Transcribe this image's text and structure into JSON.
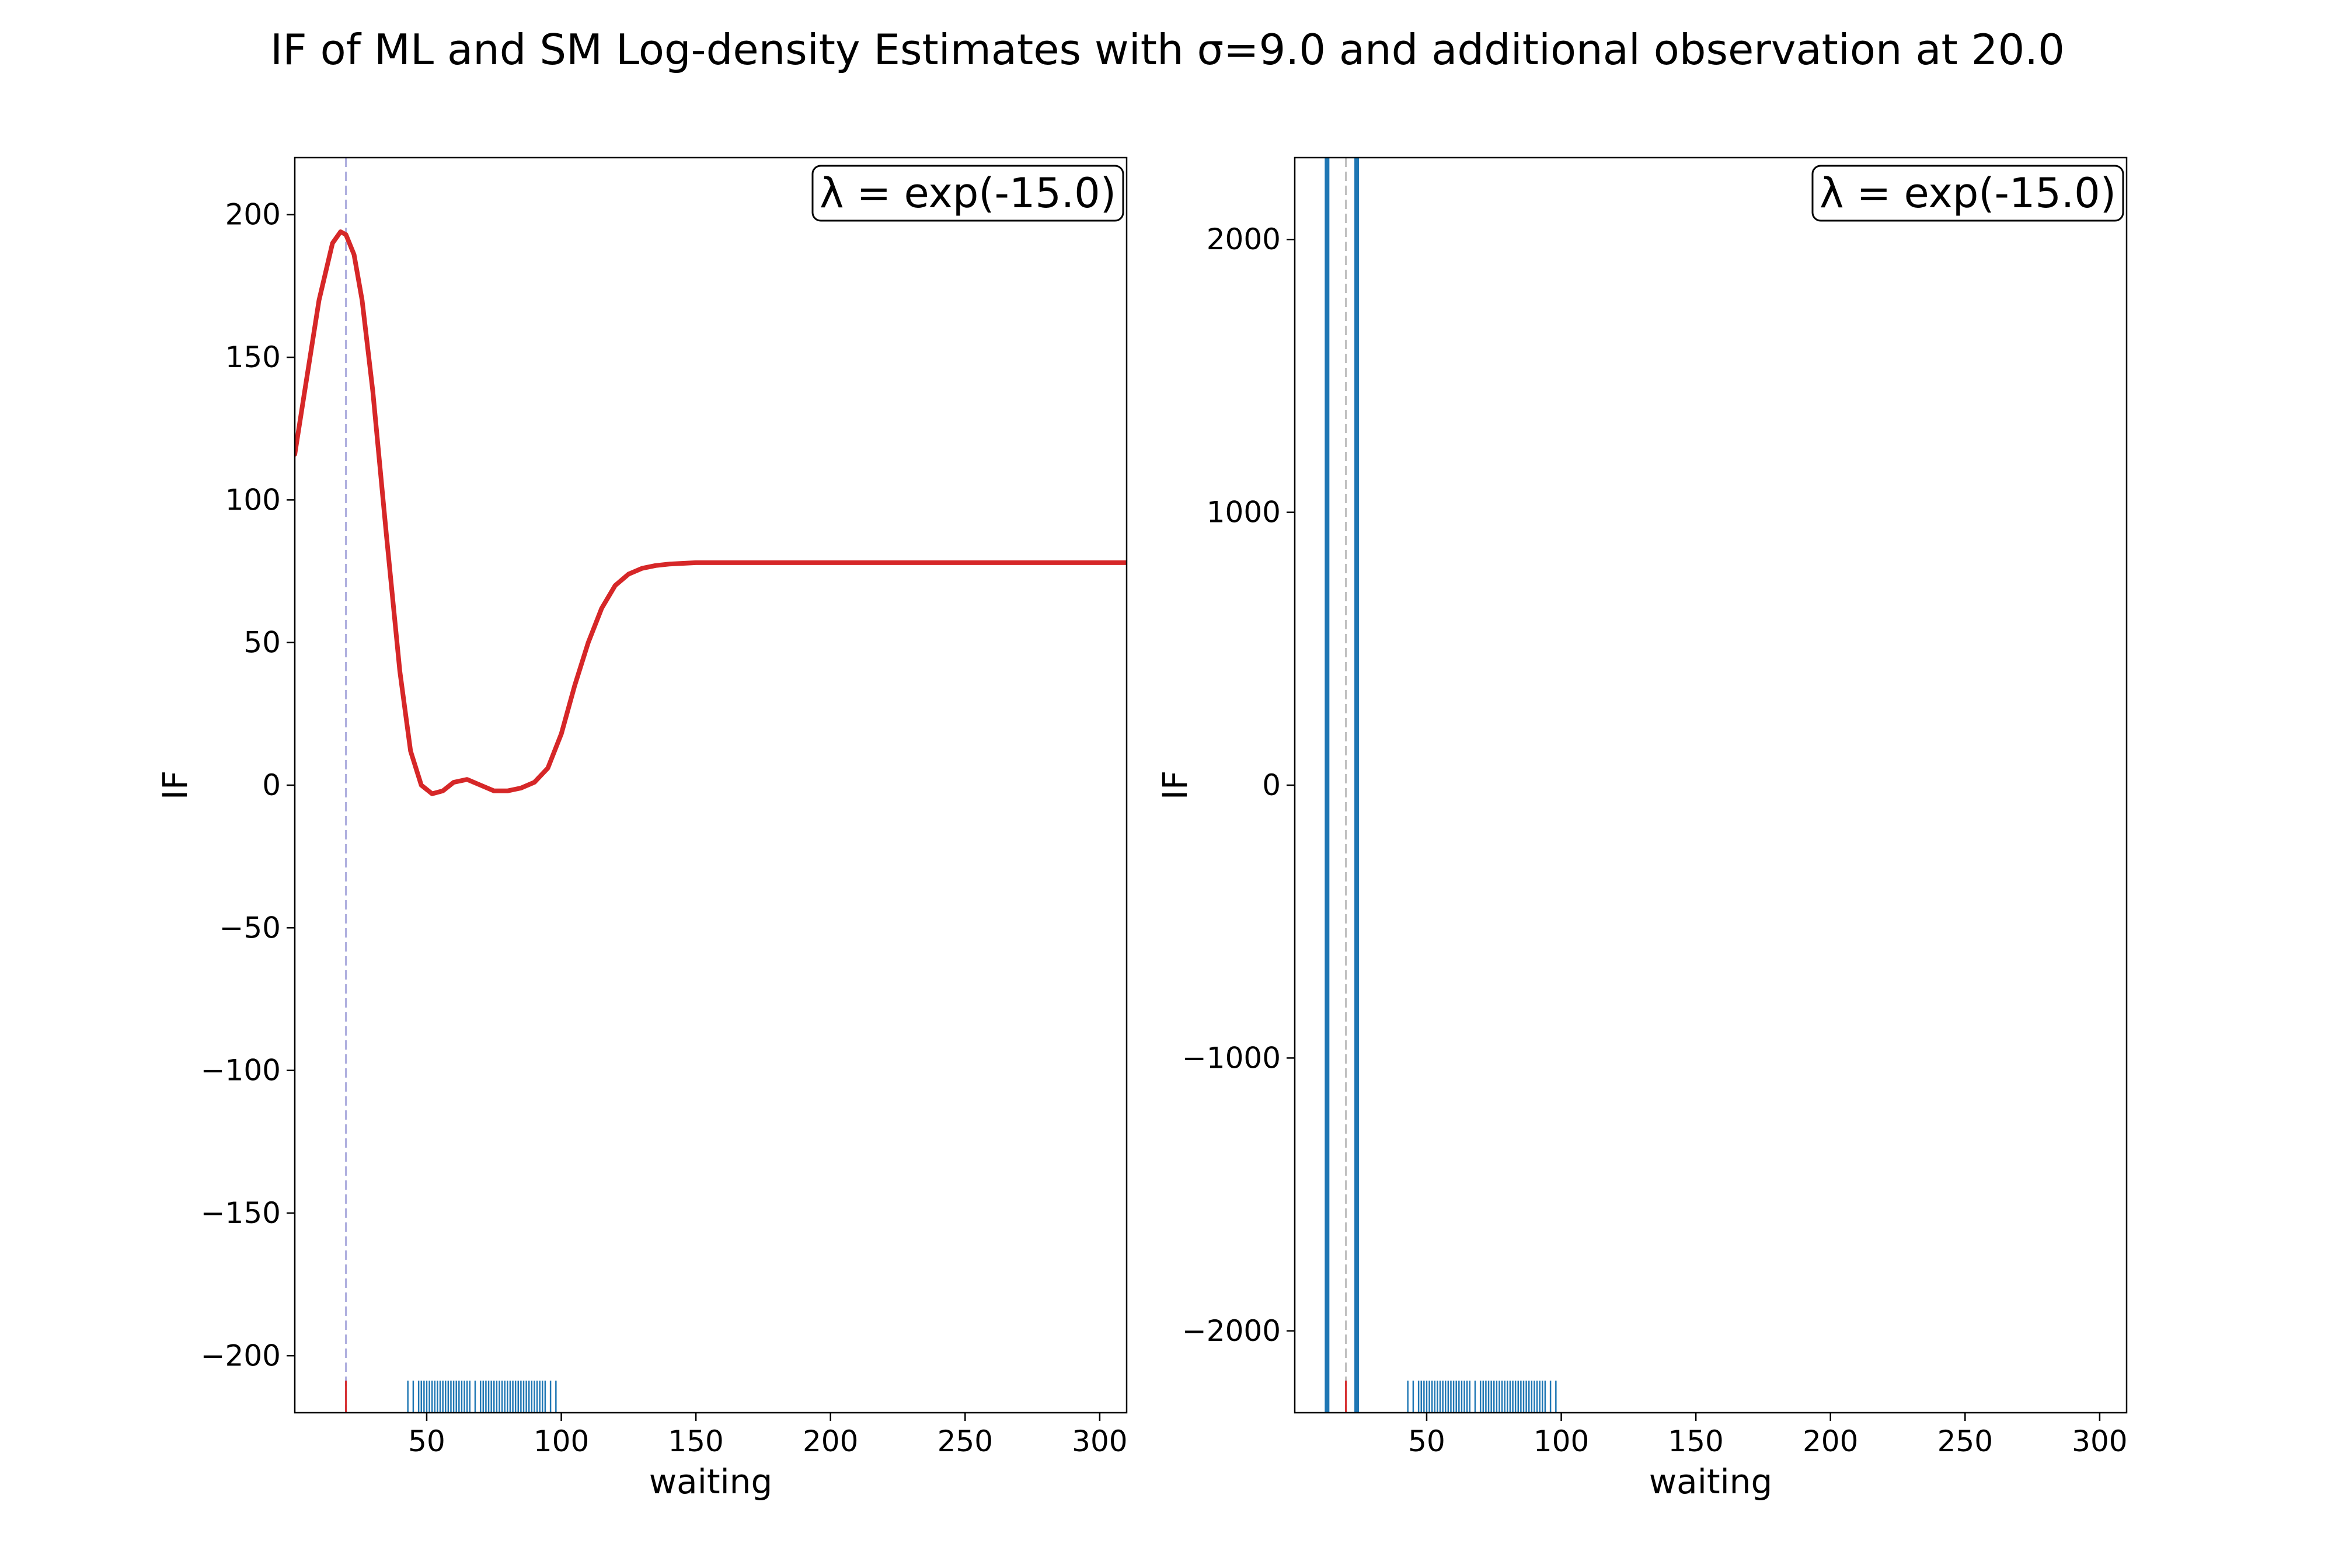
{
  "figure": {
    "suptitle": "IF of ML and SM Log-density Estimates with σ=9.0 and additional observation at 20.0"
  },
  "chart_data": [
    {
      "type": "line",
      "panel": "left",
      "xlabel": "waiting",
      "ylabel": "IF",
      "annotation": "λ = exp(-15.0)",
      "xlim": [
        1,
        310
      ],
      "ylim": [
        -220,
        220
      ],
      "xticks": [
        50,
        100,
        150,
        200,
        250,
        300
      ],
      "yticks": [
        -200,
        -150,
        -100,
        -50,
        0,
        50,
        100,
        150,
        200
      ],
      "ytick_labels": [
        "−200",
        "−150",
        "−100",
        "−50",
        "0",
        "50",
        "100",
        "150",
        "200"
      ],
      "series_color": "#d62728",
      "series": [
        {
          "name": "",
          "x": [
            1,
            5,
            10,
            15,
            18,
            20,
            23,
            26,
            30,
            35,
            40,
            44,
            48,
            52,
            56,
            60,
            65,
            70,
            75,
            80,
            85,
            90,
            95,
            100,
            105,
            110,
            115,
            120,
            125,
            130,
            135,
            140,
            150,
            175,
            200,
            250,
            310
          ],
          "y": [
            116,
            140,
            170,
            190,
            194,
            193,
            186,
            170,
            138,
            88,
            40,
            12,
            0,
            -3,
            -2,
            1,
            2,
            0,
            -2,
            -2,
            -1,
            1,
            6,
            18,
            35,
            50,
            62,
            70,
            74,
            76,
            77,
            77.5,
            78,
            78,
            78,
            78,
            78
          ]
        }
      ],
      "vline": {
        "x": 20,
        "color": "#aaaadd"
      },
      "extra_observation_rug": {
        "x": [
          20
        ],
        "color": "#d62728"
      },
      "rug": {
        "color": "#1f77b4",
        "x": [
          43,
          45,
          47,
          48,
          49,
          50,
          51,
          52,
          53,
          54,
          55,
          56,
          57,
          58,
          59,
          60,
          61,
          62,
          63,
          64,
          65,
          66,
          68,
          70,
          71,
          72,
          73,
          74,
          75,
          76,
          77,
          78,
          79,
          80,
          81,
          82,
          83,
          84,
          85,
          86,
          87,
          88,
          89,
          90,
          91,
          92,
          93,
          94,
          96,
          98
        ]
      }
    },
    {
      "type": "line",
      "panel": "right",
      "xlabel": "waiting",
      "ylabel": "IF",
      "annotation": "λ = exp(-15.0)",
      "xlim": [
        1,
        310
      ],
      "ylim": [
        -2300,
        2300
      ],
      "xticks": [
        50,
        100,
        150,
        200,
        250,
        300
      ],
      "yticks": [
        -2000,
        -1000,
        0,
        1000,
        2000
      ],
      "ytick_labels": [
        "−2000",
        "−1000",
        "0",
        "1000",
        "2000"
      ],
      "series_color": "#1f77b4",
      "vertical_segments": [
        {
          "x": 13,
          "y_from": -2300,
          "y_to": 2300
        },
        {
          "x": 24,
          "y_from": -2300,
          "y_to": 2300
        }
      ],
      "vline": {
        "x": 20,
        "color": "#bbbbbb"
      },
      "extra_observation_rug": {
        "x": [
          20
        ],
        "color": "#d62728"
      },
      "rug": {
        "color": "#1f77b4",
        "x": [
          43,
          45,
          47,
          48,
          49,
          50,
          51,
          52,
          53,
          54,
          55,
          56,
          57,
          58,
          59,
          60,
          61,
          62,
          63,
          64,
          65,
          66,
          68,
          70,
          71,
          72,
          73,
          74,
          75,
          76,
          77,
          78,
          79,
          80,
          81,
          82,
          83,
          84,
          85,
          86,
          87,
          88,
          89,
          90,
          91,
          92,
          93,
          94,
          96,
          98
        ]
      }
    }
  ]
}
